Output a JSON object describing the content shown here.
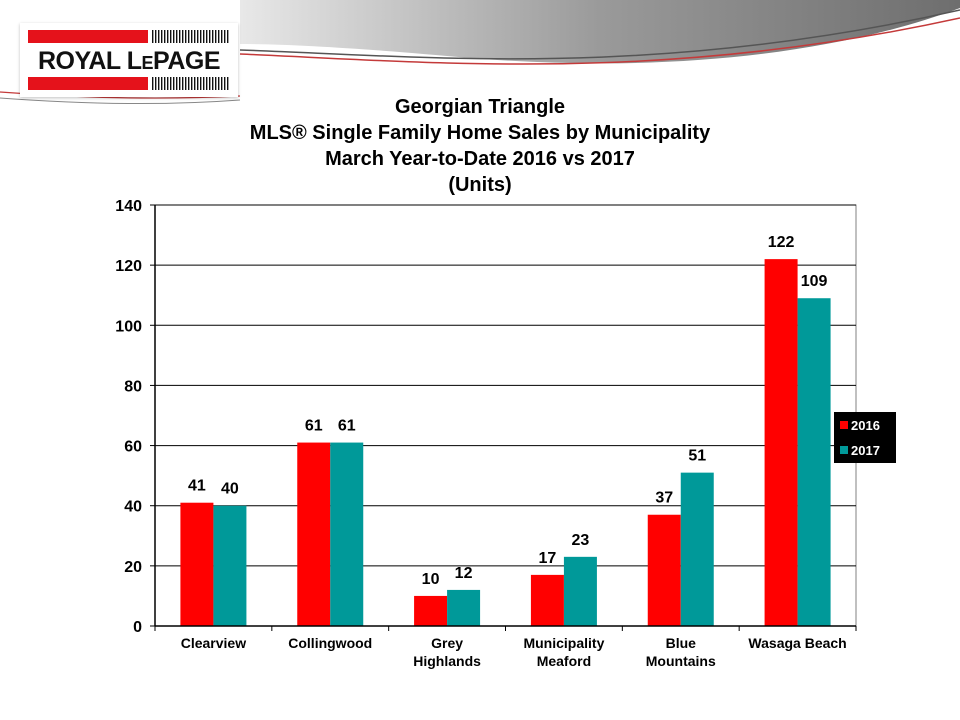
{
  "logo": {
    "text": "ROYAL LEPAGE",
    "name": "royal-lepage-logo",
    "colors": {
      "bar": "#e5121b",
      "text": "#111111"
    }
  },
  "chart_data": {
    "type": "bar",
    "title": [
      "Georgian Triangle",
      "MLS®  Single Family Home Sales by Municipality",
      "March Year-to-Date 2016 vs 2017",
      "(Units)"
    ],
    "categories": [
      [
        "Clearview"
      ],
      [
        "Collingwood"
      ],
      [
        "Grey",
        "Highlands"
      ],
      [
        "Municipality",
        "Meaford"
      ],
      [
        "Blue",
        "Mountains"
      ],
      [
        "Wasaga Beach"
      ]
    ],
    "series": [
      {
        "name": "2016",
        "color": "#ff0000",
        "values": [
          41,
          61,
          10,
          17,
          37,
          122
        ]
      },
      {
        "name": "2017",
        "color": "#009999",
        "values": [
          40,
          61,
          12,
          23,
          51,
          109
        ]
      }
    ],
    "ylim": [
      0,
      140
    ],
    "yticks": [
      "0",
      "20",
      "40",
      "60",
      "80",
      "100",
      "120",
      "140"
    ],
    "grid": true,
    "legend_position": "right",
    "data_labels": true
  }
}
